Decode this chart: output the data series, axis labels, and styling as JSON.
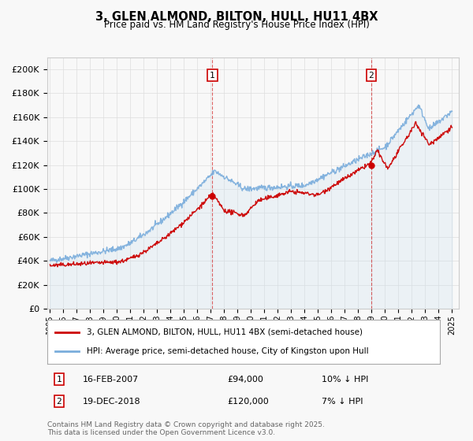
{
  "title": "3, GLEN ALMOND, BILTON, HULL, HU11 4BX",
  "subtitle": "Price paid vs. HM Land Registry's House Price Index (HPI)",
  "ylabel_ticks": [
    "£0",
    "£20K",
    "£40K",
    "£60K",
    "£80K",
    "£100K",
    "£120K",
    "£140K",
    "£160K",
    "£180K",
    "£200K"
  ],
  "ytick_vals": [
    0,
    20000,
    40000,
    60000,
    80000,
    100000,
    120000,
    140000,
    160000,
    180000,
    200000
  ],
  "ylim": [
    0,
    210000
  ],
  "xlim_start": 1994.8,
  "xlim_end": 2025.5,
  "red_line_color": "#cc0000",
  "blue_line_color": "#7aaddc",
  "blue_fill_color": "#c8dff0",
  "marker1_x": 2007.12,
  "marker1_label": "1",
  "marker1_date": "16-FEB-2007",
  "marker1_price": "£94,000",
  "marker1_hpi": "10% ↓ HPI",
  "marker1_sale_y": 94000,
  "marker2_x": 2018.96,
  "marker2_label": "2",
  "marker2_date": "19-DEC-2018",
  "marker2_price": "£120,000",
  "marker2_hpi": "7% ↓ HPI",
  "marker2_sale_y": 120000,
  "legend_label_red": "3, GLEN ALMOND, BILTON, HULL, HU11 4BX (semi-detached house)",
  "legend_label_blue": "HPI: Average price, semi-detached house, City of Kingston upon Hull",
  "footer": "Contains HM Land Registry data © Crown copyright and database right 2025.\nThis data is licensed under the Open Government Licence v3.0.",
  "background_color": "#f8f8f8",
  "grid_color": "#dddddd"
}
